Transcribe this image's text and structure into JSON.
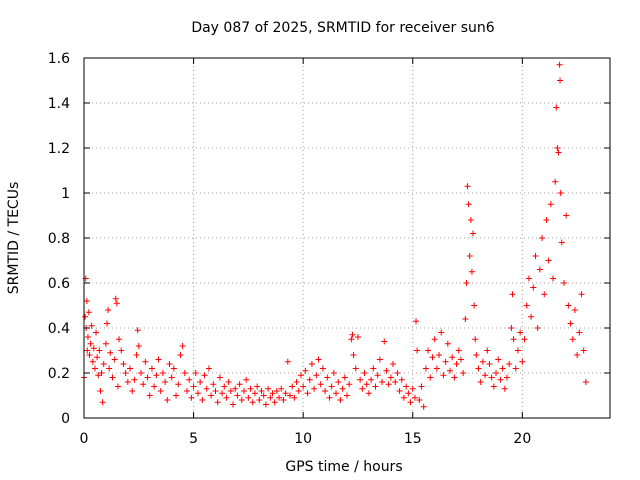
{
  "chart_data": {
    "type": "scatter",
    "title": "Day 087 of 2025, SRMTID for receiver sun6",
    "xlabel": "GPS time / hours",
    "ylabel": "SRMTID / TECUs",
    "xlim": [
      0,
      24
    ],
    "ylim": [
      0,
      1.6
    ],
    "xticks": [
      0,
      5,
      10,
      15,
      20
    ],
    "xtick_labels": [
      "0",
      "5",
      "10",
      "15",
      "20"
    ],
    "yticks": [
      0,
      0.2,
      0.4,
      0.6,
      0.8,
      1.0,
      1.2,
      1.4,
      1.6
    ],
    "ytick_labels": [
      "0",
      "0.2",
      "0.4",
      "0.6",
      "0.8",
      "1",
      "1.2",
      "1.4",
      "1.6"
    ],
    "grid": true,
    "marker": "+",
    "color": "#ff0000",
    "series": [
      {
        "name": "sun6",
        "points": [
          [
            0.0,
            0.18
          ],
          [
            0.05,
            0.45
          ],
          [
            0.08,
            0.62
          ],
          [
            0.1,
            0.4
          ],
          [
            0.13,
            0.52
          ],
          [
            0.15,
            0.3
          ],
          [
            0.18,
            0.36
          ],
          [
            0.22,
            0.47
          ],
          [
            0.25,
            0.28
          ],
          [
            0.3,
            0.33
          ],
          [
            0.35,
            0.41
          ],
          [
            0.4,
            0.25
          ],
          [
            0.45,
            0.31
          ],
          [
            0.5,
            0.22
          ],
          [
            0.55,
            0.38
          ],
          [
            0.6,
            0.27
          ],
          [
            0.65,
            0.19
          ],
          [
            0.7,
            0.3
          ],
          [
            0.75,
            0.12
          ],
          [
            0.8,
            0.2
          ],
          [
            0.85,
            0.07
          ],
          [
            0.9,
            0.24
          ],
          [
            1.0,
            0.33
          ],
          [
            1.05,
            0.42
          ],
          [
            1.1,
            0.48
          ],
          [
            1.15,
            0.22
          ],
          [
            1.2,
            0.29
          ],
          [
            1.3,
            0.18
          ],
          [
            1.4,
            0.26
          ],
          [
            1.45,
            0.53
          ],
          [
            1.5,
            0.51
          ],
          [
            1.55,
            0.14
          ],
          [
            1.6,
            0.35
          ],
          [
            1.7,
            0.3
          ],
          [
            1.8,
            0.24
          ],
          [
            1.9,
            0.2
          ],
          [
            2.0,
            0.16
          ],
          [
            2.1,
            0.22
          ],
          [
            2.2,
            0.12
          ],
          [
            2.3,
            0.17
          ],
          [
            2.4,
            0.28
          ],
          [
            2.45,
            0.39
          ],
          [
            2.5,
            0.32
          ],
          [
            2.6,
            0.2
          ],
          [
            2.7,
            0.15
          ],
          [
            2.8,
            0.25
          ],
          [
            2.9,
            0.18
          ],
          [
            3.0,
            0.1
          ],
          [
            3.1,
            0.22
          ],
          [
            3.2,
            0.14
          ],
          [
            3.3,
            0.19
          ],
          [
            3.4,
            0.26
          ],
          [
            3.5,
            0.12
          ],
          [
            3.6,
            0.2
          ],
          [
            3.7,
            0.16
          ],
          [
            3.8,
            0.08
          ],
          [
            3.9,
            0.24
          ],
          [
            4.0,
            0.18
          ],
          [
            4.1,
            0.22
          ],
          [
            4.2,
            0.1
          ],
          [
            4.3,
            0.15
          ],
          [
            4.4,
            0.28
          ],
          [
            4.5,
            0.32
          ],
          [
            4.6,
            0.2
          ],
          [
            4.7,
            0.12
          ],
          [
            4.8,
            0.17
          ],
          [
            4.9,
            0.09
          ],
          [
            5.0,
            0.14
          ],
          [
            5.1,
            0.2
          ],
          [
            5.2,
            0.11
          ],
          [
            5.3,
            0.16
          ],
          [
            5.4,
            0.08
          ],
          [
            5.5,
            0.19
          ],
          [
            5.6,
            0.13
          ],
          [
            5.7,
            0.22
          ],
          [
            5.8,
            0.1
          ],
          [
            5.9,
            0.15
          ],
          [
            6.0,
            0.12
          ],
          [
            6.1,
            0.07
          ],
          [
            6.2,
            0.18
          ],
          [
            6.3,
            0.11
          ],
          [
            6.4,
            0.14
          ],
          [
            6.5,
            0.09
          ],
          [
            6.6,
            0.16
          ],
          [
            6.7,
            0.12
          ],
          [
            6.8,
            0.06
          ],
          [
            6.9,
            0.13
          ],
          [
            7.0,
            0.1
          ],
          [
            7.1,
            0.15
          ],
          [
            7.2,
            0.08
          ],
          [
            7.3,
            0.12
          ],
          [
            7.4,
            0.17
          ],
          [
            7.5,
            0.09
          ],
          [
            7.6,
            0.13
          ],
          [
            7.7,
            0.07
          ],
          [
            7.8,
            0.11
          ],
          [
            7.9,
            0.14
          ],
          [
            8.0,
            0.08
          ],
          [
            8.1,
            0.12
          ],
          [
            8.2,
            0.1
          ],
          [
            8.3,
            0.06
          ],
          [
            8.4,
            0.13
          ],
          [
            8.5,
            0.09
          ],
          [
            8.6,
            0.11
          ],
          [
            8.7,
            0.07
          ],
          [
            8.8,
            0.12
          ],
          [
            8.9,
            0.09
          ],
          [
            9.0,
            0.13
          ],
          [
            9.1,
            0.08
          ],
          [
            9.2,
            0.11
          ],
          [
            9.3,
            0.25
          ],
          [
            9.4,
            0.1
          ],
          [
            9.5,
            0.14
          ],
          [
            9.6,
            0.09
          ],
          [
            9.7,
            0.16
          ],
          [
            9.8,
            0.12
          ],
          [
            9.9,
            0.19
          ],
          [
            10.0,
            0.14
          ],
          [
            10.1,
            0.21
          ],
          [
            10.2,
            0.11
          ],
          [
            10.3,
            0.17
          ],
          [
            10.4,
            0.24
          ],
          [
            10.5,
            0.13
          ],
          [
            10.6,
            0.19
          ],
          [
            10.7,
            0.26
          ],
          [
            10.8,
            0.15
          ],
          [
            10.9,
            0.22
          ],
          [
            11.0,
            0.12
          ],
          [
            11.1,
            0.18
          ],
          [
            11.2,
            0.09
          ],
          [
            11.3,
            0.14
          ],
          [
            11.4,
            0.2
          ],
          [
            11.5,
            0.11
          ],
          [
            11.6,
            0.16
          ],
          [
            11.7,
            0.08
          ],
          [
            11.8,
            0.13
          ],
          [
            11.9,
            0.18
          ],
          [
            12.0,
            0.1
          ],
          [
            12.1,
            0.15
          ],
          [
            12.2,
            0.35
          ],
          [
            12.25,
            0.37
          ],
          [
            12.3,
            0.28
          ],
          [
            12.4,
            0.22
          ],
          [
            12.5,
            0.36
          ],
          [
            12.6,
            0.17
          ],
          [
            12.7,
            0.13
          ],
          [
            12.8,
            0.2
          ],
          [
            12.9,
            0.15
          ],
          [
            13.0,
            0.11
          ],
          [
            13.1,
            0.17
          ],
          [
            13.2,
            0.22
          ],
          [
            13.3,
            0.14
          ],
          [
            13.4,
            0.19
          ],
          [
            13.5,
            0.26
          ],
          [
            13.6,
            0.16
          ],
          [
            13.7,
            0.34
          ],
          [
            13.8,
            0.21
          ],
          [
            13.9,
            0.15
          ],
          [
            14.0,
            0.18
          ],
          [
            14.1,
            0.24
          ],
          [
            14.2,
            0.16
          ],
          [
            14.3,
            0.2
          ],
          [
            14.4,
            0.12
          ],
          [
            14.5,
            0.17
          ],
          [
            14.6,
            0.09
          ],
          [
            14.7,
            0.14
          ],
          [
            14.8,
            0.11
          ],
          [
            14.9,
            0.07
          ],
          [
            15.0,
            0.13
          ],
          [
            15.1,
            0.09
          ],
          [
            15.15,
            0.43
          ],
          [
            15.2,
            0.3
          ],
          [
            15.3,
            0.08
          ],
          [
            15.4,
            0.14
          ],
          [
            15.5,
            0.05
          ],
          [
            15.6,
            0.22
          ],
          [
            15.7,
            0.3
          ],
          [
            15.8,
            0.18
          ],
          [
            15.9,
            0.27
          ],
          [
            16.0,
            0.35
          ],
          [
            16.1,
            0.22
          ],
          [
            16.2,
            0.28
          ],
          [
            16.3,
            0.38
          ],
          [
            16.4,
            0.19
          ],
          [
            16.5,
            0.25
          ],
          [
            16.6,
            0.33
          ],
          [
            16.7,
            0.21
          ],
          [
            16.8,
            0.27
          ],
          [
            16.9,
            0.18
          ],
          [
            17.0,
            0.24
          ],
          [
            17.1,
            0.3
          ],
          [
            17.2,
            0.26
          ],
          [
            17.3,
            0.2
          ],
          [
            17.4,
            0.44
          ],
          [
            17.45,
            0.6
          ],
          [
            17.5,
            1.03
          ],
          [
            17.55,
            0.95
          ],
          [
            17.6,
            0.72
          ],
          [
            17.65,
            0.88
          ],
          [
            17.7,
            0.65
          ],
          [
            17.75,
            0.82
          ],
          [
            17.8,
            0.5
          ],
          [
            17.85,
            0.35
          ],
          [
            17.9,
            0.28
          ],
          [
            18.0,
            0.22
          ],
          [
            18.1,
            0.16
          ],
          [
            18.2,
            0.25
          ],
          [
            18.3,
            0.19
          ],
          [
            18.4,
            0.3
          ],
          [
            18.5,
            0.24
          ],
          [
            18.6,
            0.18
          ],
          [
            18.7,
            0.14
          ],
          [
            18.8,
            0.2
          ],
          [
            18.9,
            0.26
          ],
          [
            19.0,
            0.17
          ],
          [
            19.1,
            0.22
          ],
          [
            19.2,
            0.13
          ],
          [
            19.3,
            0.18
          ],
          [
            19.4,
            0.24
          ],
          [
            19.5,
            0.4
          ],
          [
            19.55,
            0.55
          ],
          [
            19.6,
            0.35
          ],
          [
            19.7,
            0.22
          ],
          [
            19.8,
            0.3
          ],
          [
            19.9,
            0.38
          ],
          [
            20.0,
            0.25
          ],
          [
            20.1,
            0.35
          ],
          [
            20.2,
            0.5
          ],
          [
            20.3,
            0.62
          ],
          [
            20.4,
            0.45
          ],
          [
            20.5,
            0.58
          ],
          [
            20.6,
            0.72
          ],
          [
            20.7,
            0.4
          ],
          [
            20.8,
            0.66
          ],
          [
            20.9,
            0.8
          ],
          [
            21.0,
            0.55
          ],
          [
            21.1,
            0.88
          ],
          [
            21.2,
            0.7
          ],
          [
            21.3,
            0.95
          ],
          [
            21.4,
            0.62
          ],
          [
            21.5,
            1.05
          ],
          [
            21.55,
            1.38
          ],
          [
            21.6,
            1.2
          ],
          [
            21.65,
            1.18
          ],
          [
            21.7,
            1.57
          ],
          [
            21.72,
            1.5
          ],
          [
            21.75,
            1.0
          ],
          [
            21.8,
            0.78
          ],
          [
            21.9,
            0.6
          ],
          [
            22.0,
            0.9
          ],
          [
            22.1,
            0.5
          ],
          [
            22.2,
            0.42
          ],
          [
            22.3,
            0.35
          ],
          [
            22.4,
            0.48
          ],
          [
            22.5,
            0.28
          ],
          [
            22.6,
            0.38
          ],
          [
            22.7,
            0.55
          ],
          [
            22.8,
            0.3
          ],
          [
            22.9,
            0.16
          ]
        ]
      }
    ]
  }
}
